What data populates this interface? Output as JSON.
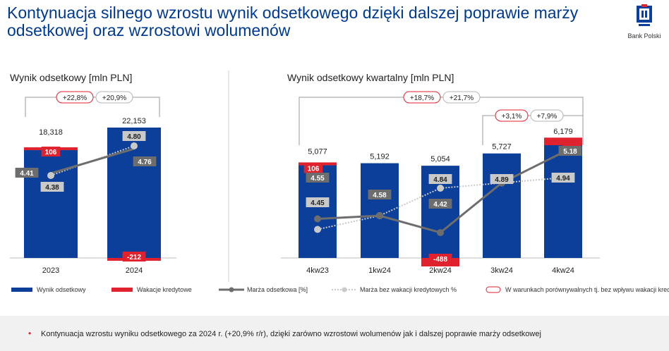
{
  "header": {
    "title": "Kontynuacja silnego wzrostu wynik odsetkowego dzięki dalszej poprawie marży odsetkowej oraz wzrostowi wolumenów",
    "logo_text": "Bank Polski"
  },
  "colors": {
    "navy": "#0b3f99",
    "red": "#e0212e",
    "grey": "#6d6d6d",
    "light_grey": "#c9c9c9",
    "title_blue": "#003a8c"
  },
  "chart_data": [
    {
      "type": "bar",
      "title": "Wynik odsetkowy [mln PLN]",
      "categories": [
        "2023",
        "2024"
      ],
      "series": [
        {
          "name": "Wynik odsetkowy",
          "values": [
            18318,
            22153
          ],
          "labels": [
            "18,318",
            "22,153"
          ]
        },
        {
          "name": "Wakacje kredytowe",
          "values": [
            106,
            -212
          ],
          "labels": [
            "106",
            "-212"
          ]
        },
        {
          "name": "Marża odsetkowa [%]",
          "values": [
            4.41,
            4.76
          ],
          "labels": [
            "4.41",
            "4.76"
          ]
        },
        {
          "name": "Marża bez wakacji kredytowych %",
          "values": [
            4.38,
            4.8
          ],
          "labels": [
            "4.38",
            "4.80"
          ]
        }
      ],
      "growth_labels": [
        "+22,8%",
        "+20,9%"
      ]
    },
    {
      "type": "bar",
      "title": "Wynik odsetkowy kwartalny [mln PLN]",
      "categories": [
        "4kw23",
        "1kw24",
        "2kw24",
        "3kw24",
        "4kw24"
      ],
      "series": [
        {
          "name": "Wynik odsetkowy",
          "values": [
            5077,
            5192,
            5054,
            5727,
            6179
          ],
          "labels": [
            "5,077",
            "5,192",
            "5,054",
            "5,727",
            "6,179"
          ]
        },
        {
          "name": "Wakacje kredytowe",
          "values": [
            106,
            0,
            -488,
            0,
            276
          ],
          "labels": [
            "106",
            "",
            "-488",
            "",
            "276"
          ]
        },
        {
          "name": "Marża odsetkowa [%]",
          "values": [
            4.55,
            4.58,
            4.42,
            4.89,
            5.18
          ],
          "labels": [
            "4.55",
            "4.58",
            "4.42",
            "4.89",
            "5.18"
          ]
        },
        {
          "name": "Marża bez wakacji kredytowych %",
          "values": [
            4.45,
            4.58,
            4.84,
            4.89,
            4.94
          ],
          "labels": [
            "4.45",
            "",
            "4.84",
            "",
            "4.94"
          ]
        }
      ],
      "growth_labels_top": [
        "+18,7%",
        "+21,7%"
      ],
      "growth_labels_bottom": [
        "+3,1%",
        "+7,9%"
      ]
    }
  ],
  "legend": [
    {
      "label": "Wynik odsetkowy"
    },
    {
      "label": "Wakacje kredytowe"
    },
    {
      "label": "Marża odsetkowa [%]"
    },
    {
      "label": "Marża bez wakacji kredytowych %"
    },
    {
      "label": "W warunkach porównywalnych tj. bez wpływu wakacji kredytowych"
    }
  ],
  "footer": {
    "text": "Kontynuacja wzrostu wyniku odsetkowego za 2024 r. (+20,9% r/r), dzięki zarówno wzrostowi wolumenów jak i dalszej poprawie marży odsetkowej"
  }
}
